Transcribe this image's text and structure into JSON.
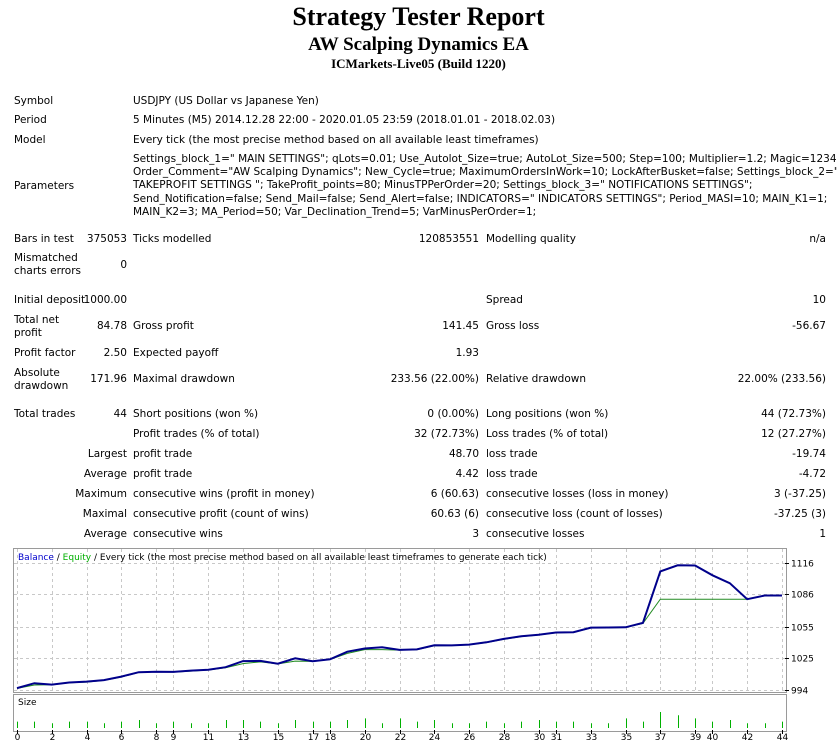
{
  "report": {
    "title": "Strategy Tester Report",
    "ea_name": "AW Scalping Dynamics EA",
    "server": "ICMarkets-Live05 (Build 1220)"
  },
  "info": {
    "symbol_label": "Symbol",
    "symbol_value": "USDJPY (US Dollar vs Japanese Yen)",
    "period_label": "Period",
    "period_value": "5 Minutes (M5) 2014.12.28 22:00 - 2020.01.05 23:59 (2018.01.01 - 2018.02.03)",
    "model_label": "Model",
    "model_value": "Every tick (the most precise method based on all available least timeframes)",
    "parameters_label": "Parameters",
    "parameters_lines": [
      "Settings_block_1=\" MAIN SETTINGS\"; qLots=0.01; Use_Autolot_Size=true; AutoLot_Size=500; Step=100; Multiplier=1.2; Magic=12345;",
      "Order_Comment=\"AW Scalping Dynamics\"; New_Cycle=true; MaximumOrdersInWork=10; LockAfterBusket=false; Settings_block_2=\"",
      "TAKEPROFIT SETTINGS \"; TakeProfit_points=80; MinusTPPerOrder=20; Settings_block_3=\" NOTIFICATIONS SETTINGS\";",
      "Send_Notification=false; Send_Mail=false; Send_Alert=false; INDICATORS=\" INDICATORS SETTINGS\"; Period_MASI=10; MAIN_K1=1;",
      "MAIN_K2=3; MA_Period=50; Var_Declination_Trend=5; VarMinusPerOrder=1;"
    ]
  },
  "stats": {
    "bars_label": "Bars in test",
    "bars_value": "375053",
    "ticks_label": "Ticks modelled",
    "ticks_value": "120853551",
    "quality_label": "Modelling quality",
    "quality_value": "n/a",
    "mismatch_label_1": "Mismatched",
    "mismatch_label_2": "charts errors",
    "mismatch_value": "0",
    "deposit_label": "Initial deposit",
    "deposit_value": "1000.00",
    "spread_label": "Spread",
    "spread_value": "10",
    "net_label_1": "Total net",
    "net_label_2": "profit",
    "net_value": "84.78",
    "gross_profit_label": "Gross profit",
    "gross_profit_value": "141.45",
    "gross_loss_label": "Gross loss",
    "gross_loss_value": "-56.67",
    "pf_label": "Profit factor",
    "pf_value": "2.50",
    "payoff_label": "Expected payoff",
    "payoff_value": "1.93",
    "abs_dd_label_1": "Absolute",
    "abs_dd_label_2": "drawdown",
    "abs_dd_value": "171.96",
    "max_dd_label": "Maximal drawdown",
    "max_dd_value": "233.56 (22.00%)",
    "rel_dd_label": "Relative drawdown",
    "rel_dd_value": "22.00% (233.56)",
    "trades_label": "Total trades",
    "trades_value": "44",
    "short_label": "Short positions (won %)",
    "short_value": "0 (0.00%)",
    "long_label": "Long positions (won %)",
    "long_value": "44 (72.73%)",
    "profit_trades_label": "Profit trades (% of total)",
    "profit_trades_value": "32 (72.73%)",
    "loss_trades_label": "Loss trades (% of total)",
    "loss_trades_value": "12 (27.27%)",
    "largest_label": "Largest",
    "largest_profit_label": "profit trade",
    "largest_profit_value": "48.70",
    "largest_loss_label": "loss trade",
    "largest_loss_value": "-19.74",
    "average_label": "Average",
    "avg_profit_label": "profit trade",
    "avg_profit_value": "4.42",
    "avg_loss_label": "loss trade",
    "avg_loss_value": "-4.72",
    "maximum_label": "Maximum",
    "max_cons_wins_label": "consecutive wins (profit in money)",
    "max_cons_wins_value": "6 (60.63)",
    "max_cons_losses_label": "consecutive losses (loss in money)",
    "max_cons_losses_value": "3 (-37.25)",
    "maximal_label": "Maximal",
    "maximal_profit_label": "consecutive profit (count of wins)",
    "maximal_profit_value": "60.63 (6)",
    "maximal_loss_label": "consecutive loss (count of losses)",
    "maximal_loss_value": "-37.25 (3)",
    "average2_label": "Average",
    "avg_cons_wins_label": "consecutive wins",
    "avg_cons_wins_value": "3",
    "avg_cons_losses_label": "consecutive losses",
    "avg_cons_losses_value": "1"
  },
  "chart_data": {
    "type": "line",
    "legend": {
      "balance": "Balance",
      "sep": " / ",
      "equity": "Equity",
      "tail": " / Every tick (the most precise method based on all available least timeframes to generate each tick)"
    },
    "colors": {
      "balance": "#00008b",
      "equity": "#228b22",
      "legend_balance": "#0000cd",
      "legend_equity": "#00b000"
    },
    "y_ticks": [
      "1116",
      "1086",
      "1055",
      "1025",
      "994"
    ],
    "ylim": [
      994,
      1116
    ],
    "x_ticks": [
      "0",
      "2",
      "4",
      "6",
      "8",
      "9",
      "11",
      "13",
      "15",
      "17",
      "18",
      "20",
      "22",
      "24",
      "26",
      "28",
      "30",
      "31",
      "33",
      "35",
      "37",
      "39",
      "40",
      "42",
      "44"
    ],
    "xlim": [
      0,
      44
    ],
    "series": [
      {
        "key": "balance",
        "x": [
          0,
          1,
          2,
          3,
          4,
          5,
          6,
          7,
          8,
          9,
          10,
          11,
          12,
          13,
          14,
          15,
          16,
          17,
          18,
          19,
          20,
          21,
          22,
          23,
          24,
          25,
          26,
          27,
          28,
          29,
          30,
          31,
          32,
          33,
          34,
          35,
          36,
          37,
          38,
          39,
          40,
          41,
          42,
          43,
          44
        ],
        "y": [
          995.8,
          1000.5,
          999.2,
          1001.2,
          1002.1,
          1003.5,
          1006.9,
          1011.1,
          1011.6,
          1011.4,
          1012.6,
          1013.5,
          1015.9,
          1021.8,
          1022.0,
          1019.3,
          1024.5,
          1021.7,
          1023.5,
          1030.8,
          1033.9,
          1035.0,
          1032.5,
          1033.0,
          1036.9,
          1036.8,
          1037.6,
          1039.8,
          1043.1,
          1045.6,
          1047.1,
          1049.2,
          1049.5,
          1053.9,
          1054.0,
          1054.2,
          1058.5,
          1107.9,
          1113.8,
          1113.6,
          1104.2,
          1096.6,
          1081.2,
          1084.8,
          1084.8
        ]
      },
      {
        "key": "equity",
        "x": [
          0,
          1,
          2,
          3,
          4,
          5,
          6,
          7,
          8,
          9,
          10,
          11,
          12,
          13,
          14,
          15,
          16,
          17,
          18,
          19,
          20,
          21,
          22,
          23,
          24,
          25,
          26,
          27,
          28,
          29,
          30,
          31,
          32,
          33,
          34,
          35,
          36,
          37,
          38,
          39,
          40,
          41,
          42,
          43,
          44
        ],
        "y": [
          995.5,
          998.8,
          999.0,
          1000.9,
          1001.6,
          1003.2,
          1006.5,
          1010.8,
          1011.4,
          1011.2,
          1012.2,
          1013.2,
          1015.4,
          1019.4,
          1021.0,
          1019.1,
          1021.8,
          1021.5,
          1023.3,
          1029.2,
          1032.8,
          1032.8,
          1032.3,
          1032.8,
          1036.5,
          1036.7,
          1037.4,
          1039.5,
          1042.7,
          1045.3,
          1046.8,
          1049.0,
          1049.3,
          1053.6,
          1053.8,
          1054.0,
          1058.0,
          1081.2,
          1081.2,
          1081.2,
          1081.2,
          1081.2,
          1081.2,
          1084.5,
          1084.5
        ]
      }
    ],
    "size_panel": {
      "label": "Size",
      "bars": [
        0.4,
        0.4,
        0.3,
        0.4,
        0.4,
        0.3,
        0.4,
        0.5,
        0.3,
        0.4,
        0.3,
        0.3,
        0.5,
        0.5,
        0.4,
        0.3,
        0.5,
        0.4,
        0.4,
        0.5,
        0.6,
        0.3,
        0.6,
        0.4,
        0.5,
        0.3,
        0.3,
        0.4,
        0.3,
        0.4,
        0.5,
        0.4,
        0.4,
        0.3,
        0.3,
        0.6,
        0.4,
        1.0,
        0.8,
        0.6,
        0.4,
        0.5,
        0.3,
        0.3,
        0.4
      ]
    }
  }
}
